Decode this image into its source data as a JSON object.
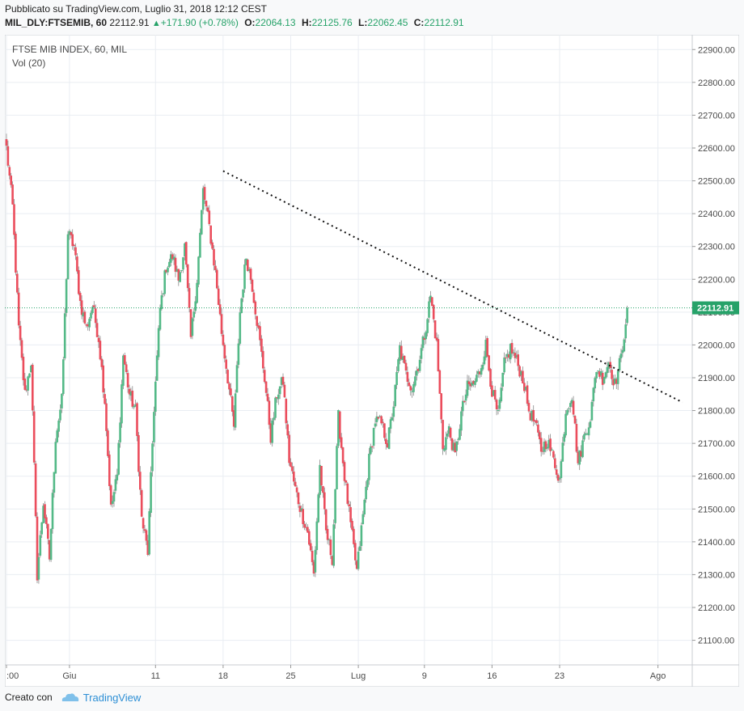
{
  "header": {
    "published": "Pubblicato su TradingView.com, Luglio 31, 2018 12:12 CEST",
    "symbol": "MIL_DLY:FTSEMIB, 60",
    "last": "22112.91",
    "change": "+171.90 (+0.78%)",
    "o_label": "O:",
    "o": "22064.13",
    "h_label": "H:",
    "h": "22125.76",
    "l_label": "L:",
    "l": "22062.45",
    "c_label": "C:",
    "c": "22112.91"
  },
  "legend": {
    "title": "FTSE MIB INDEX, 60, MIL",
    "vol": "Vol (20)"
  },
  "footer": {
    "created": "Creato con",
    "brand": "TradingView"
  },
  "colors": {
    "up": "#53b987",
    "down": "#eb4d5c",
    "wick": "#888888",
    "grid": "#e9edf2",
    "price_line": "#26a269",
    "label_bg": "#26a269"
  },
  "chart_data": {
    "type": "candlestick",
    "ylim": [
      21025,
      22945
    ],
    "yticks": [
      21100,
      21200,
      21300,
      21400,
      21500,
      21600,
      21700,
      21800,
      21900,
      22000,
      22100,
      22200,
      22300,
      22400,
      22500,
      22600,
      22700,
      22800,
      22900
    ],
    "xticks": [
      {
        "label": ":00",
        "i": 0
      },
      {
        "label": "Giu",
        "i": 41
      },
      {
        "label": "11",
        "i": 97
      },
      {
        "label": "18",
        "i": 141
      },
      {
        "label": "25",
        "i": 185
      },
      {
        "label": "Lug",
        "i": 229
      },
      {
        "label": "9",
        "i": 272
      },
      {
        "label": "16",
        "i": 316
      },
      {
        "label": "23",
        "i": 360
      },
      {
        "label": "Ago",
        "i": 424
      }
    ],
    "n_bars": 440,
    "last_price": 22112.91,
    "last_label": "22112.91",
    "closes": [
      [
        0,
        22600
      ],
      [
        4,
        22420
      ],
      [
        8,
        22050
      ],
      [
        12,
        21850
      ],
      [
        16,
        21950
      ],
      [
        20,
        21300
      ],
      [
        24,
        21520
      ],
      [
        28,
        21350
      ],
      [
        32,
        21720
      ],
      [
        36,
        21830
      ],
      [
        40,
        22340
      ],
      [
        44,
        22300
      ],
      [
        48,
        22130
      ],
      [
        52,
        22050
      ],
      [
        56,
        22120
      ],
      [
        60,
        22020
      ],
      [
        64,
        21830
      ],
      [
        68,
        21500
      ],
      [
        72,
        21600
      ],
      [
        76,
        21970
      ],
      [
        80,
        21850
      ],
      [
        84,
        21800
      ],
      [
        88,
        21470
      ],
      [
        92,
        21370
      ],
      [
        96,
        21810
      ],
      [
        100,
        22110
      ],
      [
        104,
        22240
      ],
      [
        108,
        22270
      ],
      [
        112,
        22200
      ],
      [
        116,
        22300
      ],
      [
        120,
        22020
      ],
      [
        124,
        22200
      ],
      [
        128,
        22470
      ],
      [
        132,
        22360
      ],
      [
        136,
        22220
      ],
      [
        140,
        22040
      ],
      [
        144,
        21900
      ],
      [
        148,
        21750
      ],
      [
        152,
        22100
      ],
      [
        156,
        22270
      ],
      [
        160,
        22180
      ],
      [
        164,
        22040
      ],
      [
        168,
        21900
      ],
      [
        172,
        21720
      ],
      [
        176,
        21850
      ],
      [
        180,
        21890
      ],
      [
        184,
        21650
      ],
      [
        188,
        21560
      ],
      [
        192,
        21490
      ],
      [
        196,
        21430
      ],
      [
        200,
        21300
      ],
      [
        204,
        21630
      ],
      [
        208,
        21430
      ],
      [
        212,
        21350
      ],
      [
        216,
        21780
      ],
      [
        220,
        21600
      ],
      [
        224,
        21450
      ],
      [
        228,
        21310
      ],
      [
        232,
        21480
      ],
      [
        236,
        21650
      ],
      [
        240,
        21770
      ],
      [
        244,
        21760
      ],
      [
        248,
        21700
      ],
      [
        252,
        21820
      ],
      [
        256,
        21990
      ],
      [
        260,
        21910
      ],
      [
        264,
        21870
      ],
      [
        268,
        21940
      ],
      [
        272,
        22030
      ],
      [
        276,
        22150
      ],
      [
        280,
        22000
      ],
      [
        284,
        21690
      ],
      [
        288,
        21740
      ],
      [
        292,
        21660
      ],
      [
        296,
        21790
      ],
      [
        300,
        21870
      ],
      [
        304,
        21880
      ],
      [
        308,
        21920
      ],
      [
        312,
        22000
      ],
      [
        316,
        21860
      ],
      [
        320,
        21780
      ],
      [
        324,
        21940
      ],
      [
        328,
        21990
      ],
      [
        332,
        21950
      ],
      [
        336,
        21900
      ],
      [
        340,
        21800
      ],
      [
        344,
        21760
      ],
      [
        348,
        21680
      ],
      [
        352,
        21710
      ],
      [
        356,
        21650
      ],
      [
        360,
        21590
      ],
      [
        364,
        21800
      ],
      [
        368,
        21850
      ],
      [
        372,
        21640
      ],
      [
        376,
        21720
      ],
      [
        380,
        21780
      ],
      [
        384,
        21930
      ],
      [
        388,
        21900
      ],
      [
        392,
        21950
      ],
      [
        396,
        21880
      ],
      [
        400,
        21960
      ],
      [
        404,
        22112.91
      ]
    ],
    "trendline": {
      "from": [
        141,
        22530
      ],
      "to": [
        440,
        21825
      ]
    }
  }
}
